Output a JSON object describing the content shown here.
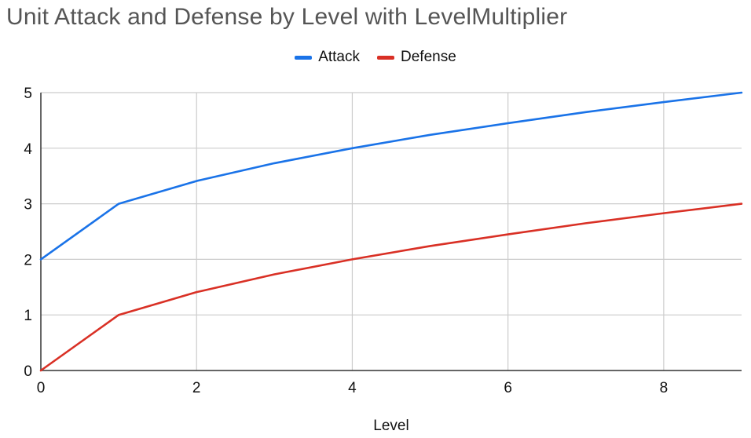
{
  "chart_data": {
    "type": "line",
    "title": "Unit Attack and Defense by Level with LevelMultiplier",
    "xlabel": "Level",
    "ylabel": "",
    "x": [
      0,
      1,
      2,
      3,
      4,
      5,
      6,
      7,
      8,
      9
    ],
    "xlim": [
      0,
      9
    ],
    "ylim": [
      0,
      5
    ],
    "xticks": [
      0,
      2,
      4,
      6,
      8
    ],
    "yticks": [
      0,
      1,
      2,
      3,
      4,
      5
    ],
    "grid": true,
    "legend_position": "top-center",
    "series": [
      {
        "name": "Attack",
        "color": "#1a73e8",
        "values": [
          2,
          3,
          3.41,
          3.73,
          4,
          4.24,
          4.45,
          4.65,
          4.83,
          5
        ]
      },
      {
        "name": "Defense",
        "color": "#d93025",
        "values": [
          0,
          1,
          1.41,
          1.73,
          2,
          2.24,
          2.45,
          2.65,
          2.83,
          3
        ]
      }
    ]
  }
}
